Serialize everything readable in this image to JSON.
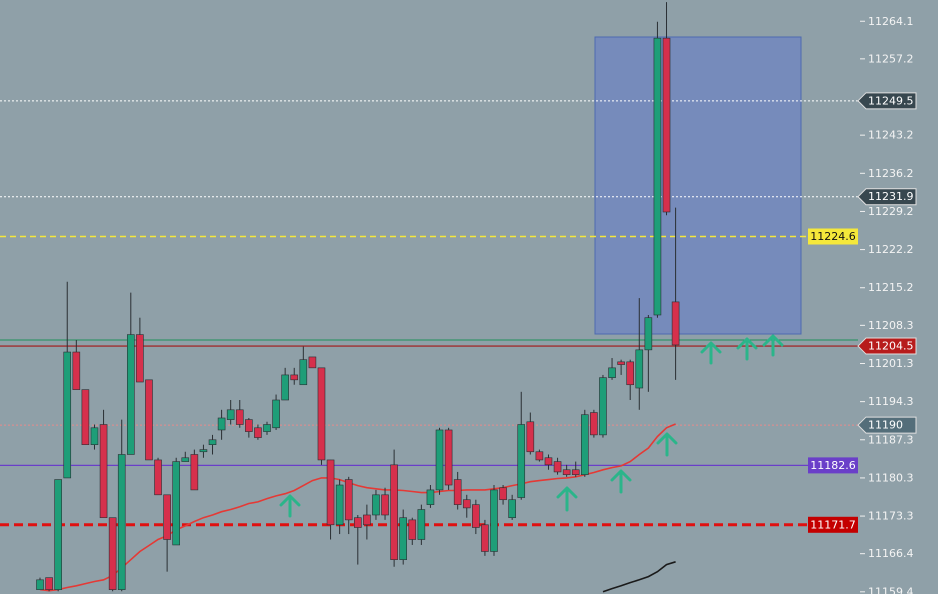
{
  "chart_data": {
    "type": "candlestick",
    "ylim": [
      11159.0,
      11268.0
    ],
    "yticks": [
      11264.1,
      11257.2,
      11243.2,
      11236.2,
      11229.2,
      11222.2,
      11215.2,
      11208.3,
      11201.3,
      11194.3,
      11187.3,
      11180.3,
      11173.3,
      11166.4,
      11159.4
    ],
    "up_color": "#1e9e78",
    "down_color": "#d6304c",
    "open": [
      11159.8,
      11162.0,
      11159.8,
      11180.3,
      11203.4,
      11196.5,
      11186.4,
      11190.1,
      11173.0,
      11159.8,
      11184.6,
      11206.6,
      11198.3,
      11183.6,
      11177.2,
      11168.0,
      11183.3,
      11184.6,
      11185.1,
      11186.4,
      11189.1,
      11191.0,
      11192.8,
      11191.0,
      11189.5,
      11188.8,
      11189.5,
      11194.6,
      11199.2,
      11197.4,
      11202.5,
      11200.5,
      11183.6,
      11171.7,
      11180.0,
      11173.0,
      11173.5,
      11173.5,
      11177.2,
      11182.7,
      11165.3,
      11172.6,
      11169.0,
      11175.4,
      11178.1,
      11189.1,
      11180.0,
      11176.3,
      11175.4,
      11171.7,
      11166.8,
      11178.5,
      11173.0,
      11176.7,
      11190.6,
      11185.1,
      11184.0,
      11183.3,
      11181.8,
      11181.8,
      11180.9,
      11192.3,
      11188.2,
      11198.7,
      11201.6,
      11201.6,
      11196.8,
      11203.8,
      11210.2,
      11261.0,
      11212.6
    ],
    "high": [
      11162.0,
      11162.0,
      11180.0,
      11216.3,
      11205.6,
      11196.5,
      11190.1,
      11192.8,
      11173.0,
      11191.0,
      11214.3,
      11209.7,
      11198.3,
      11184.0,
      11177.2,
      11184.0,
      11185.1,
      11185.5,
      11186.4,
      11188.2,
      11192.8,
      11194.6,
      11194.6,
      11191.3,
      11190.1,
      11190.6,
      11195.6,
      11200.5,
      11200.5,
      11204.4,
      11202.5,
      11200.5,
      11183.6,
      11180.0,
      11180.5,
      11173.5,
      11175.4,
      11178.1,
      11178.5,
      11185.5,
      11174.5,
      11173.0,
      11175.4,
      11179.0,
      11189.5,
      11189.5,
      11181.4,
      11177.2,
      11176.3,
      11172.6,
      11179.0,
      11179.0,
      11177.2,
      11196.1,
      11192.3,
      11185.5,
      11184.6,
      11184.0,
      11182.7,
      11183.3,
      11192.8,
      11192.8,
      11199.2,
      11202.3,
      11202.0,
      11202.0,
      11213.3,
      11210.2,
      11264.0,
      11267.6,
      11229.9
    ],
    "low": [
      11159.8,
      11159.5,
      11159.5,
      11180.3,
      11196.5,
      11186.4,
      11185.5,
      11173.0,
      11159.5,
      11159.5,
      11184.6,
      11197.9,
      11183.6,
      11177.2,
      11163.1,
      11168.0,
      11183.3,
      11178.1,
      11184.0,
      11184.6,
      11187.3,
      11190.1,
      11189.5,
      11187.7,
      11187.3,
      11188.2,
      11189.1,
      11194.6,
      11197.4,
      11197.4,
      11200.5,
      11182.7,
      11169.0,
      11170.0,
      11170.0,
      11164.4,
      11169.0,
      11172.6,
      11172.6,
      11164.0,
      11164.4,
      11168.0,
      11168.0,
      11174.8,
      11177.2,
      11178.1,
      11174.5,
      11173.0,
      11170.0,
      11166.0,
      11166.0,
      11175.4,
      11172.6,
      11176.3,
      11184.6,
      11183.3,
      11181.8,
      11180.9,
      11180.5,
      11180.5,
      11180.5,
      11187.7,
      11187.7,
      11198.3,
      11199.2,
      11194.6,
      11192.8,
      11196.1,
      11209.7,
      11228.5,
      11198.3
    ],
    "close": [
      11161.6,
      11159.8,
      11180.0,
      11203.4,
      11196.5,
      11186.4,
      11189.5,
      11173.0,
      11159.8,
      11184.6,
      11206.6,
      11197.9,
      11183.6,
      11177.2,
      11169.0,
      11183.3,
      11184.0,
      11178.1,
      11185.5,
      11187.3,
      11191.3,
      11192.8,
      11190.1,
      11188.8,
      11187.7,
      11190.1,
      11194.6,
      11199.2,
      11198.3,
      11202.0,
      11200.5,
      11183.6,
      11171.7,
      11179.0,
      11172.6,
      11171.2,
      11171.7,
      11177.2,
      11173.5,
      11165.3,
      11173.0,
      11169.0,
      11174.5,
      11178.1,
      11189.1,
      11179.0,
      11175.4,
      11174.8,
      11171.2,
      11166.8,
      11178.1,
      11176.3,
      11176.3,
      11190.1,
      11185.1,
      11183.6,
      11182.7,
      11181.4,
      11180.9,
      11180.9,
      11191.9,
      11188.2,
      11198.7,
      11200.5,
      11201.1,
      11197.4,
      11203.8,
      11209.7,
      11261.0,
      11229.1,
      11204.7
    ],
    "ma": [
      {
        "color": "#e53935",
        "values": [
          11159.8,
          11159.6,
          11159.8,
          11160.2,
          11160.5,
          11160.9,
          11161.3,
          11161.6,
          11162.4,
          11163.8,
          11165.3,
          11166.8,
          11167.9,
          11169.0,
          11169.7,
          11170.8,
          11171.5,
          11172.3,
          11173.0,
          11173.5,
          11174.1,
          11174.5,
          11175.0,
          11175.6,
          11175.9,
          11176.5,
          11177.0,
          11177.4,
          11178.0,
          11178.9,
          11179.8,
          11180.3,
          11180.3,
          11180.0,
          11179.4,
          11178.9,
          11178.5,
          11178.3,
          11178.1,
          11178.1,
          11178.0,
          11177.8,
          11177.6,
          11177.6,
          11177.8,
          11178.0,
          11178.0,
          11178.1,
          11178.1,
          11178.1,
          11178.3,
          11178.5,
          11178.9,
          11179.2,
          11179.6,
          11179.8,
          11180.0,
          11180.2,
          11180.3,
          11180.5,
          11180.9,
          11181.3,
          11181.8,
          11182.2,
          11182.5,
          11183.3,
          11184.6,
          11185.8,
          11187.9,
          11189.5,
          11190.2
        ]
      },
      {
        "color": "#1a1a1a",
        "values": [
          null,
          null,
          null,
          null,
          null,
          null,
          null,
          null,
          null,
          null,
          null,
          null,
          null,
          null,
          null,
          null,
          null,
          null,
          null,
          null,
          null,
          null,
          null,
          null,
          null,
          null,
          null,
          null,
          null,
          null,
          null,
          null,
          null,
          null,
          null,
          null,
          null,
          null,
          null,
          null,
          null,
          null,
          null,
          null,
          null,
          null,
          null,
          null,
          null,
          null,
          null,
          null,
          null,
          null,
          null,
          null,
          null,
          null,
          null,
          null,
          null,
          null,
          11159.4,
          11160.0,
          11160.5,
          11161.1,
          11161.6,
          11162.2,
          11163.1,
          11164.4,
          11164.9
        ]
      }
    ],
    "levels": [
      {
        "value": 11249.5,
        "color": "#ffffff",
        "style": "dotted",
        "label_color": "#37474f",
        "label_style": "arrow"
      },
      {
        "value": 11231.9,
        "color": "#ffffff",
        "style": "dotted",
        "label_color": "#37474f",
        "label_style": "arrow"
      },
      {
        "value": 11224.6,
        "color": "#f5e83a",
        "style": "dashed",
        "label_color": "#f5e83a",
        "label_style": "box"
      },
      {
        "value": 11204.5,
        "color": "#a31515",
        "style": "solid",
        "label_color": "#b71c1c",
        "label_style": "arrow"
      },
      {
        "value": 11190.0,
        "color": "#e88a8a",
        "style": "dotted",
        "label_color": "#546e7a",
        "label_style": "arrow"
      },
      {
        "value": 11182.6,
        "color": "#6a3fc9",
        "style": "solid",
        "label_color": "#6a3fc9",
        "label_style": "box"
      },
      {
        "value": 11171.7,
        "color": "#e01010",
        "style": "bold-dashed",
        "label_color": "#c40000",
        "label_style": "box"
      }
    ]
  }
}
